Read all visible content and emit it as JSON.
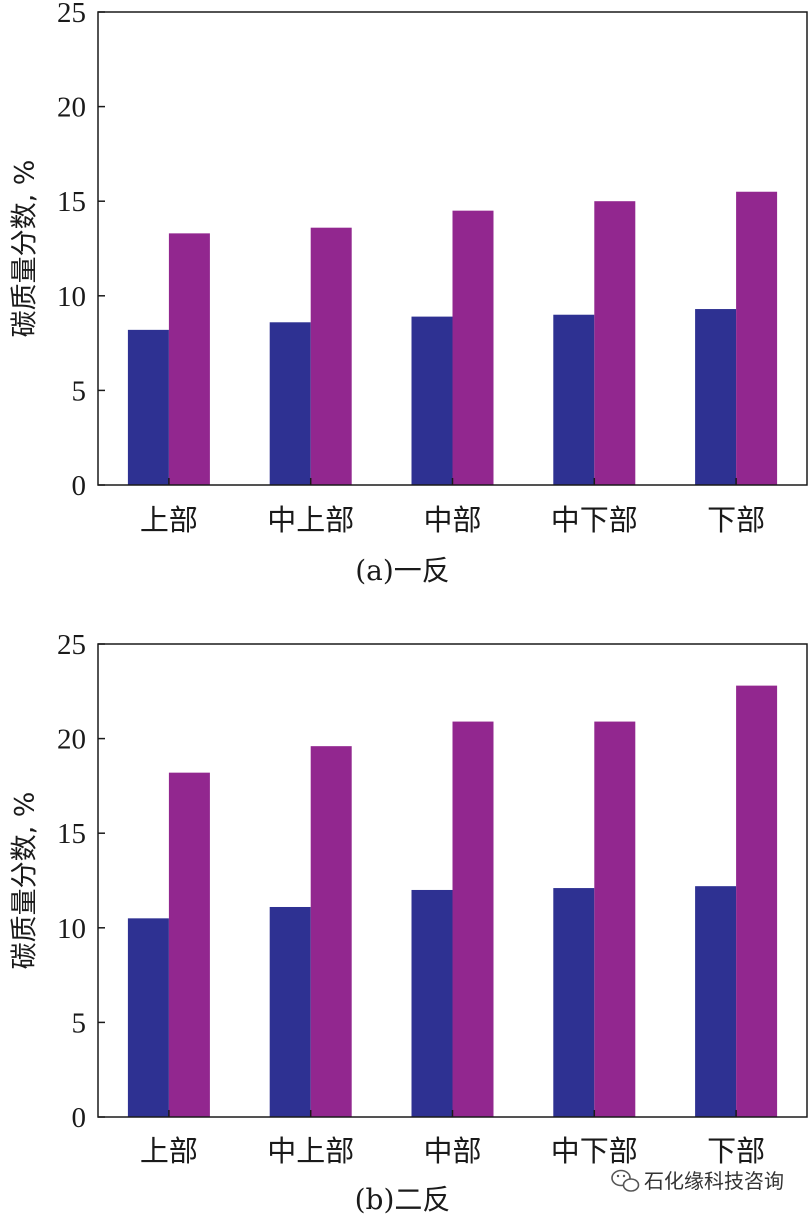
{
  "chart_data": [
    {
      "type": "bar",
      "caption": "(a)一反",
      "ylabel": "碳质量分数, %",
      "categories": [
        "上部",
        "中上部",
        "中部",
        "中下部",
        "下部"
      ],
      "ylim": [
        0,
        25
      ],
      "yticks": [
        "0",
        "5",
        "10",
        "15",
        "20",
        "25"
      ],
      "grid": false,
      "series": [
        {
          "color": "#2e3192",
          "values": [
            8.2,
            8.6,
            8.9,
            9.0,
            9.3
          ]
        },
        {
          "color": "#92278f",
          "values": [
            13.3,
            13.6,
            14.5,
            15.0,
            15.5
          ]
        }
      ]
    },
    {
      "type": "bar",
      "caption": "(b)二反",
      "ylabel": "碳质量分数, %",
      "categories": [
        "上部",
        "中上部",
        "中部",
        "中下部",
        "下部"
      ],
      "ylim": [
        0,
        25
      ],
      "yticks": [
        "0",
        "5",
        "10",
        "15",
        "20",
        "25"
      ],
      "grid": false,
      "series": [
        {
          "color": "#2e3192",
          "values": [
            10.5,
            11.1,
            12.0,
            12.1,
            12.2
          ]
        },
        {
          "color": "#92278f",
          "values": [
            18.2,
            19.6,
            20.9,
            20.9,
            22.8
          ]
        }
      ]
    }
  ],
  "watermark": {
    "icon": "wechat-icon",
    "text": "石化缘科技咨询"
  }
}
